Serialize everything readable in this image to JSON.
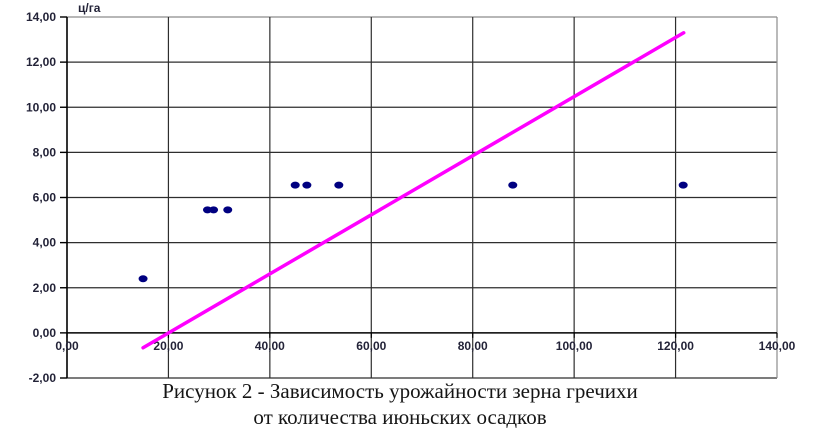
{
  "figure": {
    "caption_line1": "Рисунок 2 - Зависимость урожайности зерна гречихи",
    "caption_line2": "от количества июньских осадков"
  },
  "chart_data": {
    "type": "scatter",
    "title": "",
    "xlabel": "",
    "ylabel": "ц/га",
    "xlim": [
      0,
      140
    ],
    "ylim": [
      -2,
      14
    ],
    "x_ticks": [
      0,
      20,
      40,
      60,
      80,
      100,
      120,
      140
    ],
    "y_ticks": [
      -2,
      0,
      2,
      4,
      6,
      8,
      10,
      12,
      14
    ],
    "grid": true,
    "legend": "none",
    "tick_decimal_separator": ",",
    "points": [
      [
        15.0,
        2.4
      ],
      [
        27.7,
        5.45
      ],
      [
        28.9,
        5.45
      ],
      [
        31.7,
        5.45
      ],
      [
        45.0,
        6.55
      ],
      [
        47.3,
        6.55
      ],
      [
        53.6,
        6.55
      ],
      [
        87.9,
        6.55
      ],
      [
        121.5,
        6.55
      ]
    ],
    "trendline": {
      "x1": 15.0,
      "y1": -0.66,
      "x2": 121.6,
      "y2": 13.3
    },
    "colors": {
      "point": "#000080",
      "trend": "#ff00ff",
      "grid": "#2e2e2e",
      "frame": "#8c8c8c",
      "axis": "#000000",
      "tick_label": "#232338"
    }
  }
}
